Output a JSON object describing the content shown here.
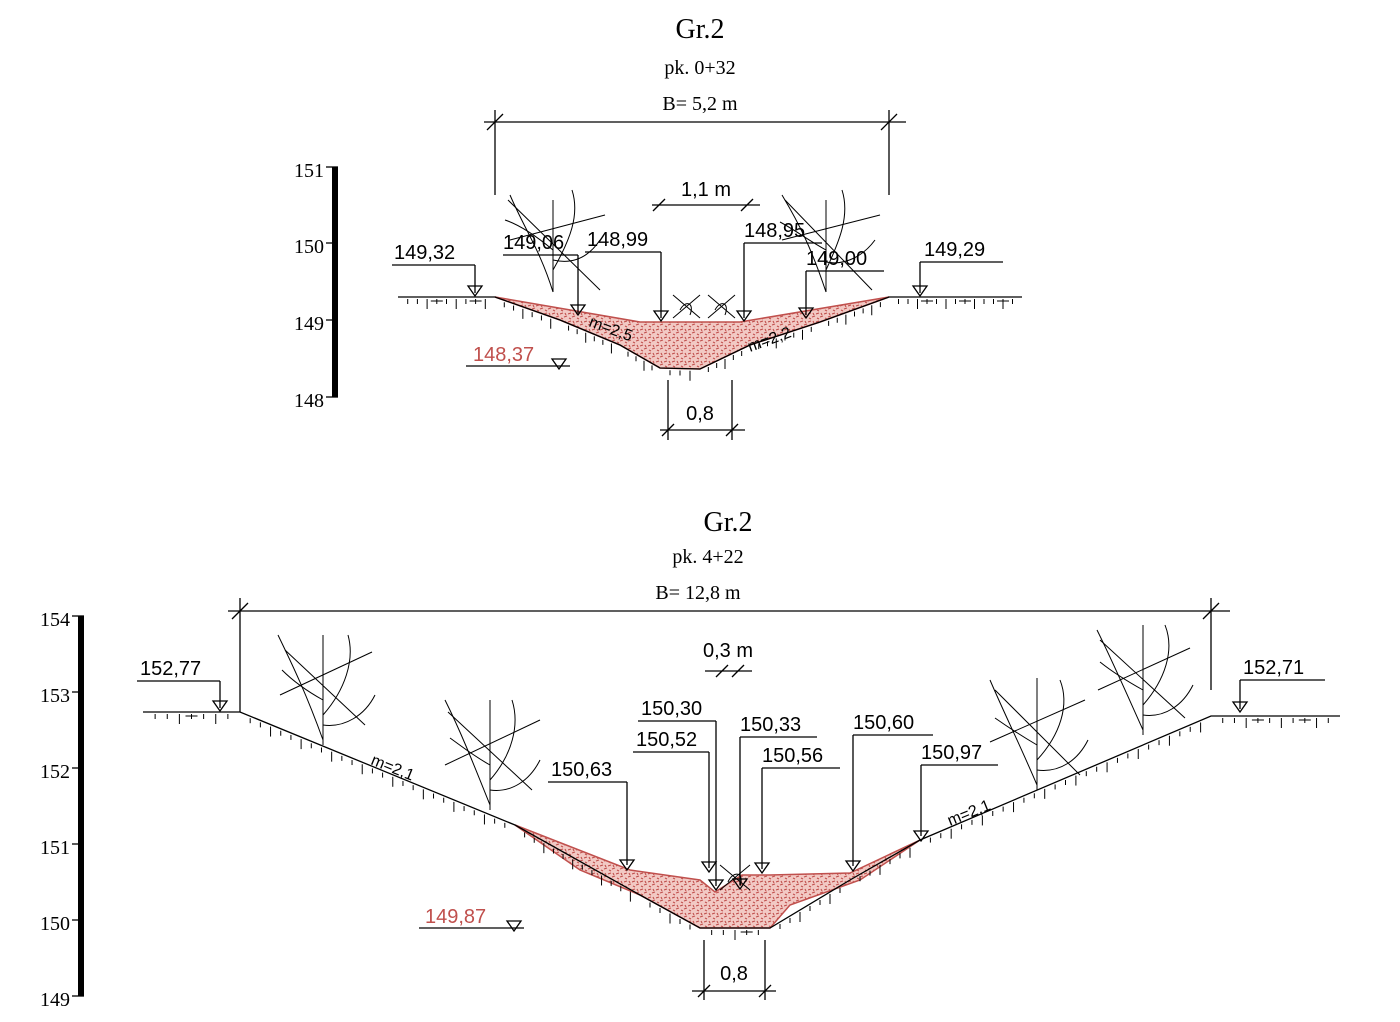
{
  "colors": {
    "sediment": "#c0504d",
    "sediment_fill": "#f2c9c4",
    "line": "#000000"
  },
  "section1": {
    "title": "Gr.2",
    "station": "pk. 0+32",
    "width_label": "B= 5,2 m",
    "water_width": "1,1 m",
    "bottom_width": "0,8",
    "scale_ticks": [
      "151",
      "150",
      "149",
      "148"
    ],
    "elev_left_bank": "149,32",
    "elev_right_bank": "149,29",
    "elev_l1": "149,06",
    "elev_l2": "148,99",
    "elev_r1": "148,95",
    "elev_r2": "149,00",
    "elev_bottom": "148,37",
    "slope_left": "m=2,5",
    "slope_right": "m=2,2"
  },
  "section2": {
    "title": "Gr.2",
    "station": "pk. 4+22",
    "width_label": "B= 12,8 m",
    "water_width": "0,3 m",
    "bottom_width": "0,8",
    "scale_ticks": [
      "154",
      "153",
      "152",
      "151",
      "150",
      "149"
    ],
    "elev_left_bank": "152,77",
    "elev_right_bank": "152,71",
    "elev_a": "150,63",
    "elev_b": "150,30",
    "elev_c": "150,52",
    "elev_d": "150,33",
    "elev_e": "150,56",
    "elev_f": "150,60",
    "elev_g": "150,97",
    "elev_bottom": "149,87",
    "slope_left": "m=2,1",
    "slope_right": "m=2,1"
  }
}
